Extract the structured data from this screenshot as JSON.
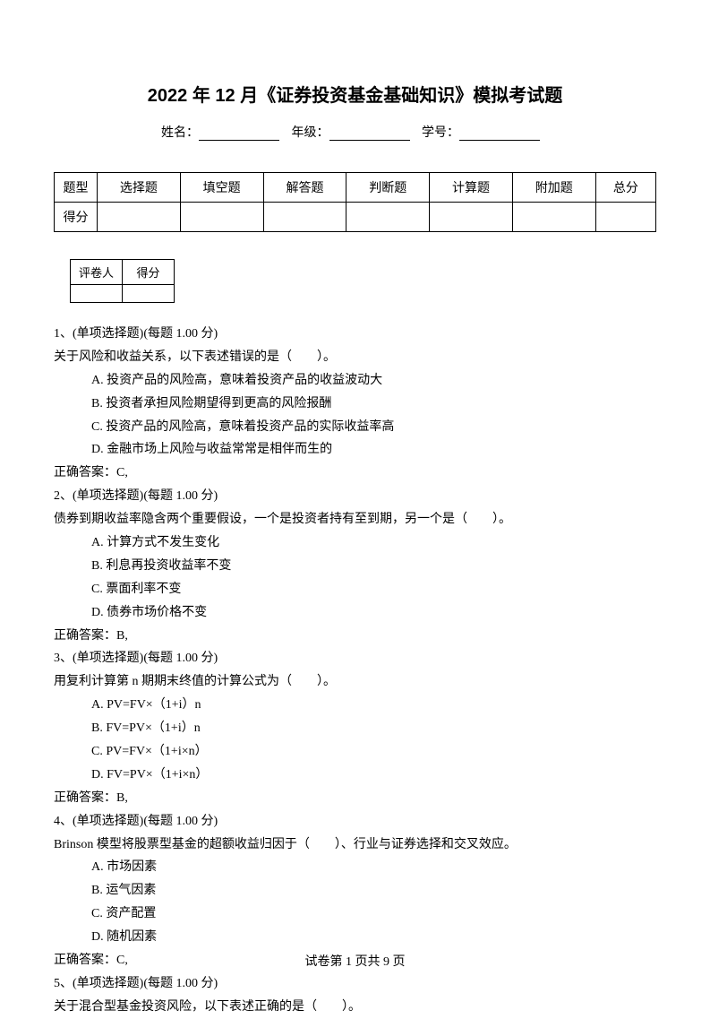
{
  "title": "2022 年 12 月《证券投资基金基础知识》模拟考试题",
  "info": {
    "name_label": "姓名：",
    "grade_label": "年级：",
    "id_label": "学号："
  },
  "score_table": {
    "row1_header": "题型",
    "columns": [
      "选择题",
      "填空题",
      "解答题",
      "判断题",
      "计算题",
      "附加题",
      "总分"
    ],
    "row2_header": "得分"
  },
  "grader_table": {
    "col1": "评卷人",
    "col2": "得分"
  },
  "questions": [
    {
      "num": "1、(单项选择题)(每题 1.00 分)",
      "stem": "关于风险和收益关系，以下表述错误的是（　　）。",
      "options": [
        "A. 投资产品的风险高，意味着投资产品的收益波动大",
        "B. 投资者承担风险期望得到更高的风险报酬",
        "C. 投资产品的风险高，意味着投资产品的实际收益率高",
        "D. 金融市场上风险与收益常常是相伴而生的"
      ],
      "answer": "正确答案：C,"
    },
    {
      "num": "2、(单项选择题)(每题 1.00 分)",
      "stem": "债券到期收益率隐含两个重要假设，一个是投资者持有至到期，另一个是（　　）。",
      "options": [
        "A. 计算方式不发生变化",
        "B. 利息再投资收益率不变",
        "C. 票面利率不变",
        "D. 债券市场价格不变"
      ],
      "answer": "正确答案：B,"
    },
    {
      "num": "3、(单项选择题)(每题 1.00 分)",
      "stem": "用复利计算第 n 期期末终值的计算公式为（　　）。",
      "options": [
        "A. PV=FV×（1+i）n",
        "B. FV=PV×（1+i）n",
        "C. PV=FV×（1+i×n）",
        "D. FV=PV×（1+i×n）"
      ],
      "answer": "正确答案：B,"
    },
    {
      "num": "4、(单项选择题)(每题 1.00 分)",
      "stem": "Brinson 模型将股票型基金的超额收益归因于（　　）、行业与证券选择和交叉效应。",
      "options": [
        "A. 市场因素",
        "B. 运气因素",
        "C. 资产配置",
        "D. 随机因素"
      ],
      "answer": "正确答案：C,"
    },
    {
      "num": "5、(单项选择题)(每题 1.00 分)",
      "stem": "关于混合型基金投资风险，以下表述正确的是（　　）。",
      "options": [],
      "answer": ""
    }
  ],
  "footer": "试卷第 1 页共 9 页"
}
